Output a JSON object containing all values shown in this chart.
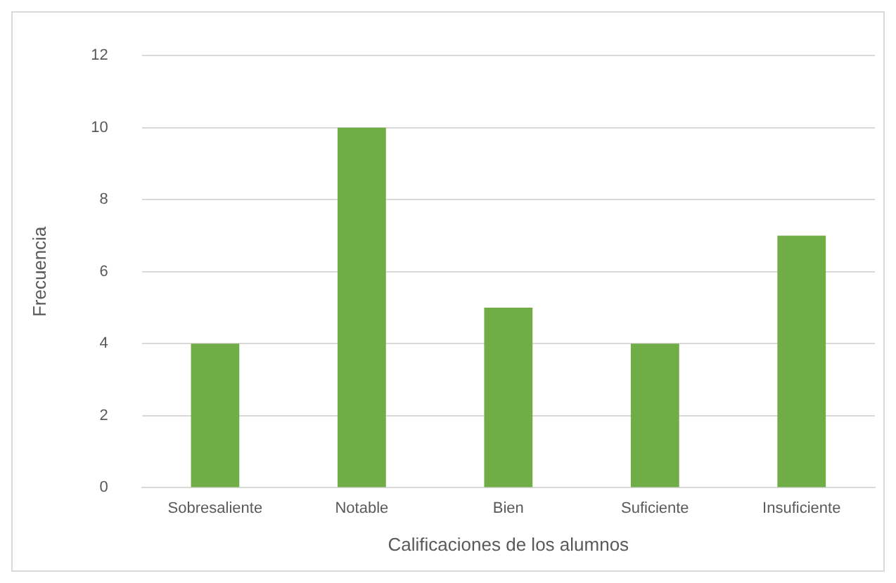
{
  "chart_data": {
    "type": "bar",
    "xlabel": "Calificaciones de los alumnos",
    "ylabel": "Frecuencia",
    "categories": [
      "Sobresaliente",
      "Notable",
      "Bien",
      "Suficiente",
      "Insuficiente"
    ],
    "values": [
      4,
      10,
      5,
      4,
      7
    ],
    "color": "#70ad47",
    "ylim": [
      0,
      12
    ],
    "yticks": [
      0,
      2,
      4,
      6,
      8,
      10,
      12
    ],
    "grid": "y"
  }
}
